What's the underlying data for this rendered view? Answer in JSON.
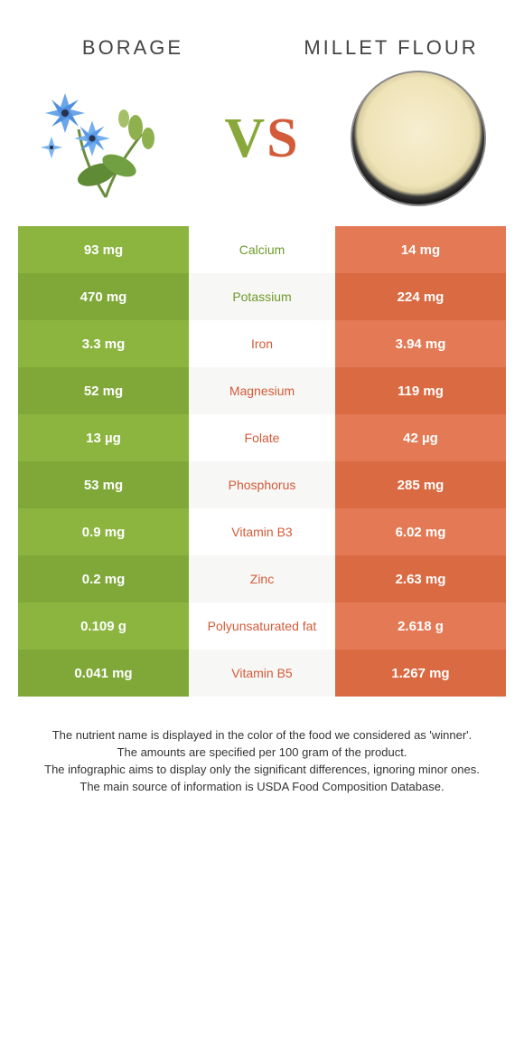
{
  "header": {
    "left_title": "BORAGE",
    "right_title": "MILLET FLOUR",
    "vs_v": "V",
    "vs_s": "S"
  },
  "colors": {
    "left_primary": "#8cb53f",
    "left_alt": "#7fa838",
    "right_primary": "#e37a55",
    "right_alt": "#da6a42",
    "mid_bg_primary": "#ffffff",
    "mid_bg_alt": "#f7f7f5",
    "mid_text_left_win": "#6f9a2b",
    "mid_text_right_win": "#d35b39"
  },
  "rows": [
    {
      "left": "93 mg",
      "label": "Calcium",
      "right": "14 mg",
      "winner": "left"
    },
    {
      "left": "470 mg",
      "label": "Potassium",
      "right": "224 mg",
      "winner": "left"
    },
    {
      "left": "3.3 mg",
      "label": "Iron",
      "right": "3.94 mg",
      "winner": "right"
    },
    {
      "left": "52 mg",
      "label": "Magnesium",
      "right": "119 mg",
      "winner": "right"
    },
    {
      "left": "13 µg",
      "label": "Folate",
      "right": "42 µg",
      "winner": "right"
    },
    {
      "left": "53 mg",
      "label": "Phosphorus",
      "right": "285 mg",
      "winner": "right"
    },
    {
      "left": "0.9 mg",
      "label": "Vitamin B3",
      "right": "6.02 mg",
      "winner": "right"
    },
    {
      "left": "0.2 mg",
      "label": "Zinc",
      "right": "2.63 mg",
      "winner": "right"
    },
    {
      "left": "0.109 g",
      "label": "Polyunsaturated fat",
      "right": "2.618 g",
      "winner": "right"
    },
    {
      "left": "0.041 mg",
      "label": "Vitamin B5",
      "right": "1.267 mg",
      "winner": "right"
    }
  ],
  "footer": {
    "line1": "The nutrient name is displayed in the color of the food we considered as 'winner'.",
    "line2": "The amounts are specified per 100 gram of the product.",
    "line3": "The infographic aims to display only the significant differences, ignoring minor ones.",
    "line4": "The main source of information is USDA Food Composition Database."
  }
}
